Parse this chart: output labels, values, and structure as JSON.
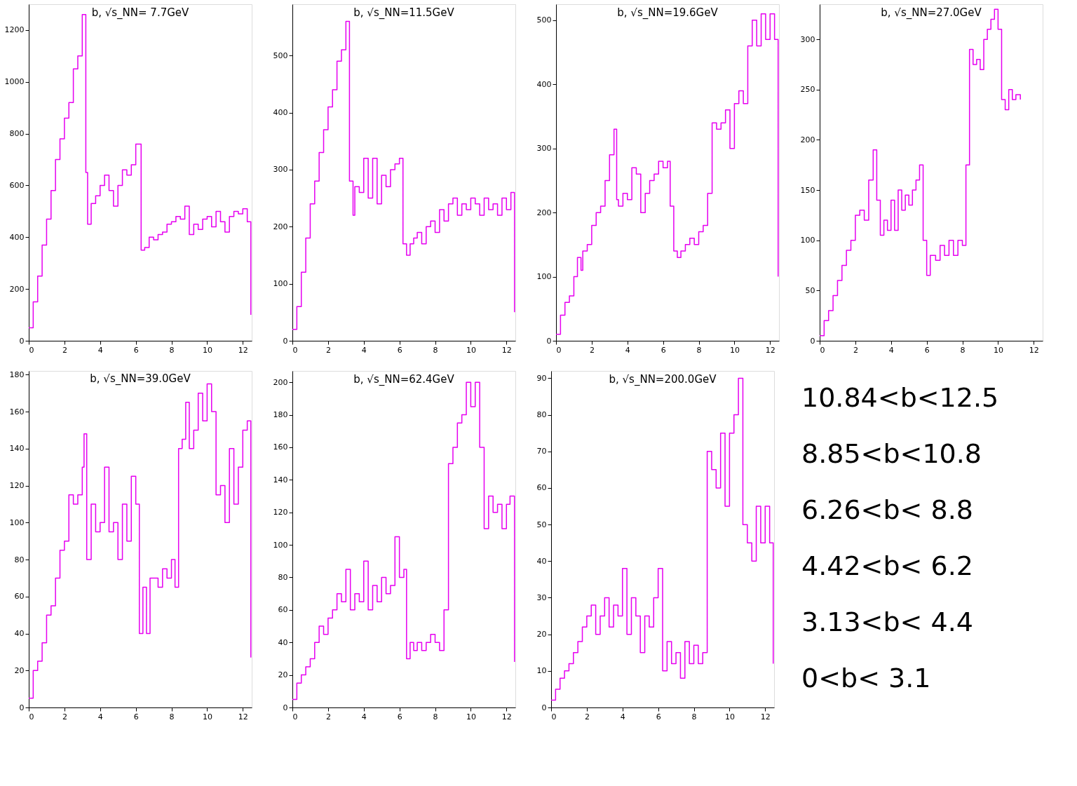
{
  "chart_data": [
    {
      "type": "step",
      "title": "b, √s_NN= 7.7GeV",
      "color": "#e600f0",
      "xlim": [
        0,
        12.5
      ],
      "xticks": [
        0,
        2,
        4,
        6,
        8,
        10,
        12
      ],
      "ylim": [
        0,
        1300
      ],
      "yticks": [
        0,
        200,
        400,
        600,
        800,
        1000,
        1200
      ],
      "x": [
        0,
        0.25,
        0.5,
        0.75,
        1.0,
        1.25,
        1.5,
        1.75,
        2.0,
        2.25,
        2.5,
        2.75,
        3.0,
        3.2,
        3.3,
        3.5,
        3.75,
        4.0,
        4.25,
        4.5,
        4.75,
        5.0,
        5.25,
        5.5,
        5.75,
        6.0,
        6.3,
        6.5,
        6.75,
        7.0,
        7.25,
        7.5,
        7.75,
        8.0,
        8.25,
        8.5,
        8.75,
        9.0,
        9.25,
        9.5,
        9.75,
        10.0,
        10.25,
        10.5,
        10.75,
        11.0,
        11.25,
        11.5,
        11.75,
        12.0,
        12.25,
        12.45
      ],
      "values": [
        50,
        150,
        250,
        370,
        470,
        580,
        700,
        780,
        860,
        920,
        1050,
        1100,
        1260,
        650,
        450,
        530,
        560,
        600,
        640,
        580,
        520,
        600,
        660,
        640,
        680,
        760,
        350,
        360,
        400,
        390,
        410,
        420,
        450,
        460,
        480,
        470,
        520,
        410,
        450,
        430,
        470,
        480,
        440,
        500,
        460,
        420,
        480,
        500,
        490,
        510,
        460,
        100
      ]
    },
    {
      "type": "step",
      "title": "b, √s_NN=11.5GeV",
      "color": "#e600f0",
      "xlim": [
        0,
        12.5
      ],
      "xticks": [
        0,
        2,
        4,
        6,
        8,
        10,
        12
      ],
      "ylim": [
        0,
        590
      ],
      "yticks": [
        0,
        100,
        200,
        300,
        400,
        500
      ],
      "x": [
        0,
        0.25,
        0.5,
        0.75,
        1.0,
        1.25,
        1.5,
        1.75,
        2.0,
        2.25,
        2.5,
        2.75,
        3.0,
        3.2,
        3.4,
        3.5,
        3.75,
        4.0,
        4.25,
        4.5,
        4.75,
        5.0,
        5.25,
        5.5,
        5.75,
        6.0,
        6.2,
        6.4,
        6.6,
        6.8,
        7.0,
        7.25,
        7.5,
        7.75,
        8.0,
        8.25,
        8.5,
        8.75,
        9.0,
        9.25,
        9.5,
        9.75,
        10.0,
        10.25,
        10.5,
        10.75,
        11.0,
        11.25,
        11.5,
        11.75,
        12.0,
        12.25,
        12.45
      ],
      "values": [
        20,
        60,
        120,
        180,
        240,
        280,
        330,
        370,
        410,
        440,
        490,
        510,
        560,
        280,
        220,
        270,
        260,
        320,
        250,
        320,
        240,
        290,
        270,
        300,
        310,
        320,
        170,
        150,
        170,
        180,
        190,
        170,
        200,
        210,
        190,
        230,
        210,
        240,
        250,
        220,
        240,
        230,
        250,
        240,
        220,
        250,
        230,
        240,
        220,
        250,
        230,
        260,
        50
      ]
    },
    {
      "type": "step",
      "title": "b, √s_NN=19.6GeV",
      "color": "#e600f0",
      "xlim": [
        0,
        12.5
      ],
      "xticks": [
        0,
        2,
        4,
        6,
        8,
        10,
        12
      ],
      "ylim": [
        0,
        525
      ],
      "yticks": [
        0,
        100,
        200,
        300,
        400,
        500
      ],
      "x": [
        0,
        0.25,
        0.5,
        0.75,
        1.0,
        1.2,
        1.4,
        1.5,
        1.75,
        2.0,
        2.25,
        2.5,
        2.75,
        3.0,
        3.25,
        3.4,
        3.5,
        3.75,
        4.0,
        4.25,
        4.5,
        4.75,
        5.0,
        5.25,
        5.5,
        5.75,
        6.0,
        6.25,
        6.4,
        6.6,
        6.8,
        7.0,
        7.25,
        7.5,
        7.75,
        8.0,
        8.25,
        8.5,
        8.75,
        9.0,
        9.25,
        9.5,
        9.75,
        10.0,
        10.25,
        10.5,
        10.75,
        11.0,
        11.25,
        11.5,
        11.75,
        12.0,
        12.25,
        12.45
      ],
      "values": [
        10,
        40,
        60,
        70,
        100,
        130,
        110,
        140,
        150,
        180,
        200,
        210,
        250,
        290,
        330,
        220,
        210,
        230,
        220,
        270,
        260,
        200,
        230,
        250,
        260,
        280,
        270,
        280,
        210,
        140,
        130,
        140,
        150,
        160,
        150,
        170,
        180,
        230,
        340,
        330,
        340,
        360,
        300,
        370,
        390,
        370,
        460,
        500,
        460,
        510,
        470,
        510,
        470,
        100
      ]
    },
    {
      "type": "step",
      "title": "b, √s_NN=27.0GeV",
      "color": "#e600f0",
      "xlim": [
        0,
        12.5
      ],
      "xticks": [
        0,
        2,
        4,
        6,
        8,
        10,
        12
      ],
      "ylim": [
        0,
        335
      ],
      "yticks": [
        0,
        50,
        100,
        150,
        200,
        250,
        300
      ],
      "x": [
        0,
        0.25,
        0.5,
        0.75,
        1.0,
        1.25,
        1.5,
        1.75,
        2.0,
        2.25,
        2.5,
        2.75,
        3.0,
        3.2,
        3.4,
        3.6,
        3.8,
        4.0,
        4.2,
        4.4,
        4.6,
        4.8,
        5.0,
        5.2,
        5.4,
        5.6,
        5.8,
        6.0,
        6.2,
        6.5,
        6.75,
        7.0,
        7.25,
        7.5,
        7.75,
        8.0,
        8.2,
        8.4,
        8.6,
        8.8,
        9.0,
        9.2,
        9.4,
        9.6,
        9.8,
        10.0,
        10.2,
        10.4,
        10.6,
        10.8,
        11.0,
        11.25
      ],
      "values": [
        5,
        20,
        30,
        45,
        60,
        75,
        90,
        100,
        125,
        130,
        120,
        160,
        190,
        140,
        105,
        120,
        110,
        140,
        110,
        150,
        130,
        145,
        135,
        150,
        160,
        175,
        100,
        65,
        85,
        80,
        95,
        85,
        100,
        85,
        100,
        95,
        175,
        290,
        275,
        280,
        270,
        300,
        310,
        320,
        330,
        310,
        240,
        230,
        250,
        240,
        245,
        240
      ]
    },
    {
      "type": "step",
      "title": "b, √s_NN=39.0GeV",
      "color": "#e600f0",
      "xlim": [
        0,
        12.5
      ],
      "xticks": [
        0,
        2,
        4,
        6,
        8,
        10,
        12
      ],
      "ylim": [
        0,
        182
      ],
      "yticks": [
        0,
        20,
        40,
        60,
        80,
        100,
        120,
        140,
        160,
        180
      ],
      "x": [
        0,
        0.25,
        0.5,
        0.75,
        1.0,
        1.25,
        1.5,
        1.75,
        2.0,
        2.25,
        2.5,
        2.75,
        3.0,
        3.1,
        3.25,
        3.5,
        3.75,
        4.0,
        4.25,
        4.5,
        4.75,
        5.0,
        5.25,
        5.5,
        5.75,
        6.0,
        6.2,
        6.4,
        6.6,
        6.8,
        7.0,
        7.25,
        7.5,
        7.75,
        8.0,
        8.2,
        8.4,
        8.6,
        8.8,
        9.0,
        9.25,
        9.5,
        9.75,
        10.0,
        10.25,
        10.5,
        10.75,
        11.0,
        11.25,
        11.5,
        11.75,
        12.0,
        12.25,
        12.45
      ],
      "values": [
        5,
        20,
        25,
        35,
        50,
        55,
        70,
        85,
        90,
        115,
        110,
        115,
        130,
        148,
        80,
        110,
        95,
        100,
        130,
        95,
        100,
        80,
        110,
        90,
        125,
        110,
        40,
        65,
        40,
        70,
        70,
        65,
        75,
        70,
        80,
        65,
        140,
        145,
        165,
        140,
        150,
        170,
        155,
        175,
        160,
        115,
        120,
        100,
        140,
        110,
        130,
        150,
        155,
        27
      ]
    },
    {
      "type": "step",
      "title": "b, √s_NN=62.4GeV",
      "color": "#e600f0",
      "xlim": [
        0,
        12.5
      ],
      "xticks": [
        0,
        2,
        4,
        6,
        8,
        10,
        12
      ],
      "ylim": [
        0,
        207
      ],
      "yticks": [
        0,
        20,
        40,
        60,
        80,
        100,
        120,
        140,
        160,
        180,
        200
      ],
      "x": [
        0,
        0.25,
        0.5,
        0.75,
        1.0,
        1.25,
        1.5,
        1.75,
        2.0,
        2.25,
        2.5,
        2.75,
        3.0,
        3.25,
        3.5,
        3.75,
        4.0,
        4.25,
        4.5,
        4.75,
        5.0,
        5.25,
        5.5,
        5.75,
        6.0,
        6.25,
        6.4,
        6.6,
        6.8,
        7.0,
        7.25,
        7.5,
        7.75,
        8.0,
        8.25,
        8.5,
        8.75,
        9.0,
        9.25,
        9.5,
        9.75,
        10.0,
        10.25,
        10.5,
        10.75,
        11.0,
        11.25,
        11.5,
        11.75,
        12.0,
        12.2,
        12.45
      ],
      "values": [
        5,
        15,
        20,
        25,
        30,
        40,
        50,
        45,
        55,
        60,
        70,
        65,
        85,
        60,
        70,
        65,
        90,
        60,
        75,
        65,
        80,
        70,
        75,
        105,
        80,
        85,
        30,
        40,
        35,
        40,
        35,
        40,
        45,
        40,
        35,
        60,
        150,
        160,
        175,
        180,
        200,
        185,
        200,
        160,
        110,
        130,
        120,
        125,
        110,
        125,
        130,
        28
      ]
    },
    {
      "type": "step",
      "title": "b, √s_NN=200.0GeV",
      "color": "#e600f0",
      "xlim": [
        0,
        12.5
      ],
      "xticks": [
        0,
        2,
        4,
        6,
        8,
        10,
        12
      ],
      "ylim": [
        0,
        92
      ],
      "yticks": [
        0,
        10,
        20,
        30,
        40,
        50,
        60,
        70,
        80,
        90
      ],
      "x": [
        0,
        0.25,
        0.5,
        0.75,
        1.0,
        1.25,
        1.5,
        1.75,
        2.0,
        2.25,
        2.5,
        2.75,
        3.0,
        3.25,
        3.5,
        3.75,
        4.0,
        4.25,
        4.5,
        4.75,
        5.0,
        5.25,
        5.5,
        5.75,
        6.0,
        6.25,
        6.5,
        6.75,
        7.0,
        7.25,
        7.5,
        7.75,
        8.0,
        8.25,
        8.5,
        8.75,
        9.0,
        9.25,
        9.5,
        9.75,
        10.0,
        10.25,
        10.5,
        10.75,
        11.0,
        11.25,
        11.5,
        11.75,
        12.0,
        12.25,
        12.45
      ],
      "values": [
        2,
        5,
        8,
        10,
        12,
        15,
        18,
        22,
        25,
        28,
        20,
        25,
        30,
        22,
        28,
        25,
        38,
        20,
        30,
        25,
        15,
        25,
        22,
        30,
        38,
        10,
        18,
        12,
        15,
        8,
        18,
        12,
        17,
        12,
        15,
        70,
        65,
        60,
        75,
        55,
        75,
        80,
        90,
        50,
        45,
        40,
        55,
        45,
        55,
        45,
        12
      ]
    },
    {
      "type": "other",
      "annotations": [
        "10.84<b<12.5",
        "8.85<b<10.8",
        "6.26<b< 8.8",
        "4.42<b< 6.2",
        "3.13<b< 4.4",
        "0<b< 3.1"
      ]
    }
  ]
}
